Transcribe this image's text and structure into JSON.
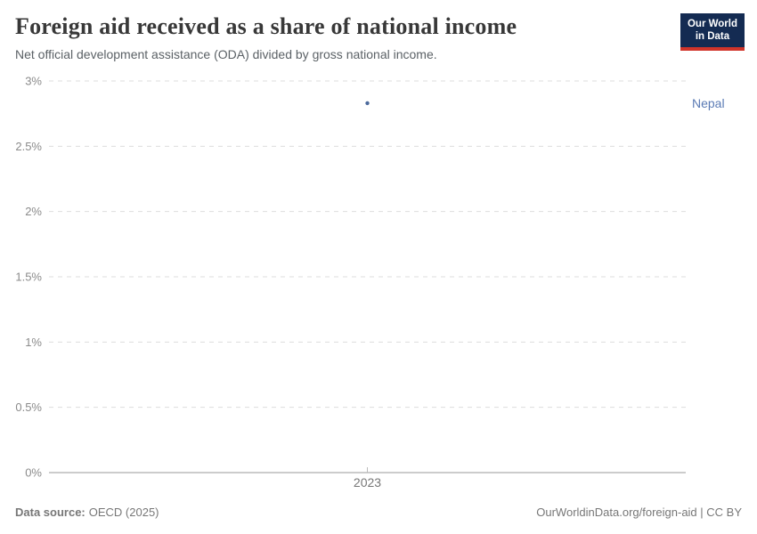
{
  "header": {
    "title": "Foreign aid received as a share of national income",
    "subtitle": "Net official development assistance (ODA) divided by gross national income.",
    "logo": {
      "line1": "Our World",
      "line2": "in Data",
      "bg_color": "#142b52",
      "bar_color": "#d0342a"
    }
  },
  "chart_data": {
    "type": "scatter",
    "title": "Foreign aid received as a share of national income",
    "subtitle": "Net official development assistance (ODA) divided by gross national income.",
    "series": [
      {
        "name": "Nepal",
        "color": "#4c6a9c",
        "label_color": "#5b7bb5",
        "points": [
          {
            "x": 2023,
            "y": 2.83
          }
        ]
      }
    ],
    "x": {
      "ticks": [
        2023
      ]
    },
    "y": {
      "ticks": [
        0,
        0.5,
        1,
        1.5,
        2,
        2.5,
        3
      ],
      "suffix": "%",
      "lim": [
        0,
        3
      ]
    },
    "grid": {
      "style": "dashed-horizontal",
      "color": "#dddddd",
      "zero_line_color": "#999999",
      "tick_mark_color": "#bbbbbb"
    },
    "legend_position": "right-of-point",
    "ylabel": "",
    "xlabel": ""
  },
  "footer": {
    "datasource_label": "Data source:",
    "datasource_value": "OECD (2025)",
    "link": "OurWorldinData.org/foreign-aid | CC BY"
  }
}
